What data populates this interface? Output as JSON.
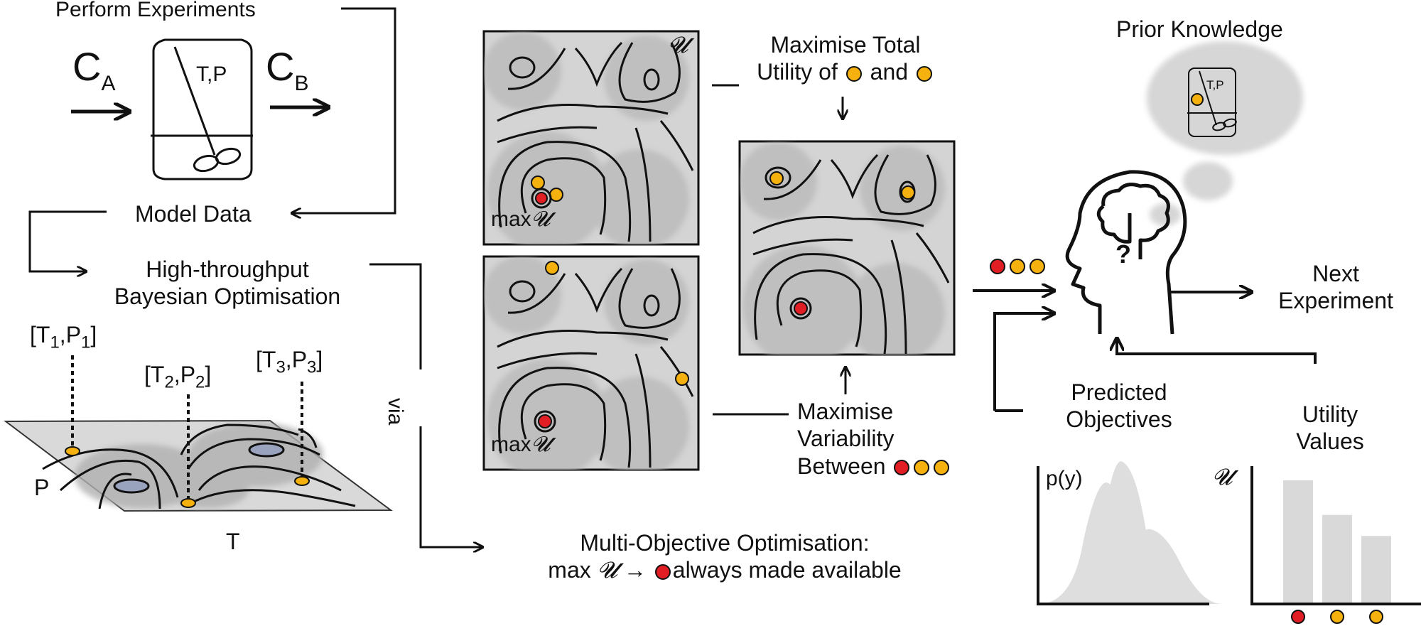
{
  "colors": {
    "accent_orange": "#f5b20e",
    "accent_red": "#e01e24",
    "surface_grey": "#d9d9d9",
    "blob_grey": "#b5b5b5"
  },
  "experiment": {
    "title": "Perform Experiments",
    "input_label": "C",
    "input_sub": "A",
    "output_label": "C",
    "output_sub": "B",
    "reactor_label": "T,P",
    "model_data": "Model Data"
  },
  "hto": {
    "line1": "High-throughput",
    "line2": "Bayesian Optimisation"
  },
  "surface": {
    "tp1": "[T",
    "tp1_sub1": "1",
    "tp1_mid": ",P",
    "tp1_sub2": "1",
    "tp1_end": "]",
    "tp2": "[T",
    "tp2_sub1": "2",
    "tp2_mid": ",P",
    "tp2_sub2": "2",
    "tp2_end": "]",
    "tp3": "[T",
    "tp3_sub1": "3",
    "tp3_mid": ",P",
    "tp3_sub2": "3",
    "tp3_end": "]",
    "axis_p": "P",
    "axis_t": "T"
  },
  "via": "via",
  "moo": {
    "line1": "Multi-Objective Optimisation:",
    "line2_a": "max",
    "line2_u": "𝓤",
    "line2_b": "→",
    "line2_c": "always made available"
  },
  "panels": {
    "utility_symbol": "𝓤",
    "max_label": "max",
    "max_u": "𝓤"
  },
  "maximise_total": {
    "line1": "Maximise Total",
    "line2_a": "Utility of",
    "line2_b": "and"
  },
  "maximise_var": {
    "line1": "Maximise",
    "line2": "Variability",
    "line3": "Between"
  },
  "prior": "Prior Knowledge",
  "thought_reactor": "T,P",
  "head_symbol": "?",
  "next": {
    "line1": "Next",
    "line2": "Experiment"
  },
  "predicted": {
    "line1": "Predicted",
    "line2": "Objectives",
    "ylabel": "p(y)"
  },
  "utility_values": {
    "line1": "Utility",
    "line2": "Values",
    "ylabel": "𝓤"
  },
  "chart_data": {
    "type": "bar",
    "categories": [
      "red",
      "orange",
      "orange"
    ],
    "values": [
      1.0,
      0.72,
      0.55
    ],
    "ylabel": "𝓤",
    "xlabel": ""
  }
}
